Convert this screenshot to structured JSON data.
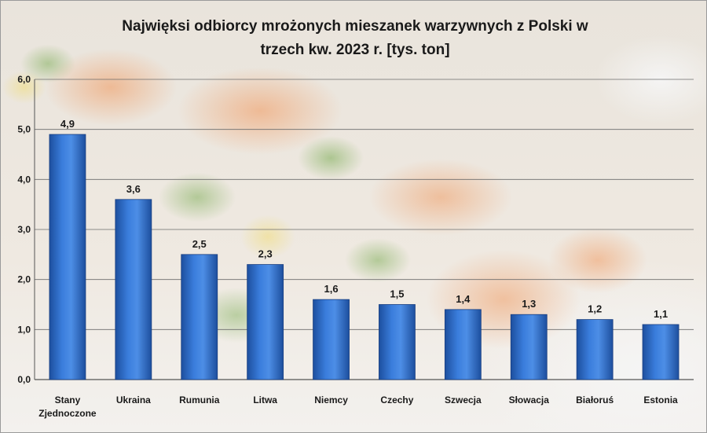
{
  "chart_data": {
    "type": "bar",
    "title_line1": "Najwięksi odbiorcy mrożonych mieszanek warzywnych z Polski w",
    "title_line2": "trzech kw. 2023 r. [tys. ton]",
    "xlabel": "",
    "ylabel": "",
    "categories": [
      [
        "Stany",
        "Zjednoczone"
      ],
      [
        "Ukraina"
      ],
      [
        "Rumunia"
      ],
      [
        "Litwa"
      ],
      [
        "Niemcy"
      ],
      [
        "Czechy"
      ],
      [
        "Szwecja"
      ],
      [
        "Słowacja"
      ],
      [
        "Białoruś"
      ],
      [
        "Estonia"
      ]
    ],
    "values": [
      4.9,
      3.6,
      2.5,
      2.3,
      1.6,
      1.5,
      1.4,
      1.3,
      1.2,
      1.1
    ],
    "value_labels": [
      "4,9",
      "3,6",
      "2,5",
      "2,3",
      "1,6",
      "1,5",
      "1,4",
      "1,3",
      "1,2",
      "1,1"
    ],
    "ylim": [
      0,
      6
    ],
    "yticks": [
      {
        "value": 0,
        "label": "0,0"
      },
      {
        "value": 1,
        "label": "1,0"
      },
      {
        "value": 2,
        "label": "2,0"
      },
      {
        "value": 3,
        "label": "3,0"
      },
      {
        "value": 4,
        "label": "4,0"
      },
      {
        "value": 5,
        "label": "5,0"
      },
      {
        "value": 6,
        "label": "6,0"
      }
    ],
    "grid": true,
    "legend": "none",
    "bar_color": "#2f6fcf"
  }
}
